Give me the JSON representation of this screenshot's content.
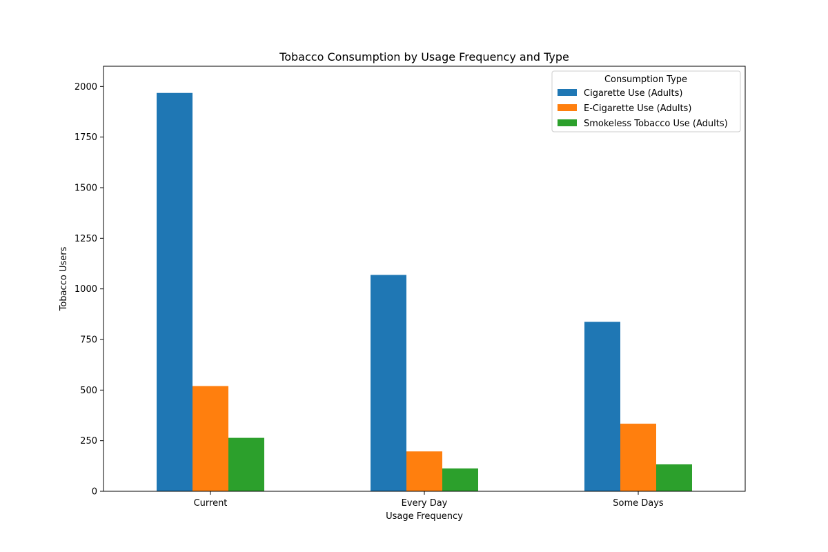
{
  "chart_data": {
    "type": "bar",
    "title": "Tobacco Consumption by Usage Frequency and Type",
    "xlabel": "Usage Frequency",
    "ylabel": "Tobacco Users",
    "categories": [
      "Current",
      "Every Day",
      "Some Days"
    ],
    "ylim": [
      0,
      2100
    ],
    "yticks": [
      0,
      250,
      500,
      750,
      1000,
      1250,
      1500,
      1750,
      2000
    ],
    "grid": false,
    "legend": {
      "title": "Consumption Type",
      "placement": "top-right"
    },
    "series": [
      {
        "name": "Cigarette Use (Adults)",
        "color": "#1f77b4",
        "values": [
          1968,
          1069,
          837
        ]
      },
      {
        "name": "E-Cigarette Use (Adults)",
        "color": "#ff7f0e",
        "values": [
          520,
          197,
          334
        ]
      },
      {
        "name": "Smokeless Tobacco Use (Adults)",
        "color": "#2ca02c",
        "values": [
          264,
          113,
          133
        ]
      }
    ]
  }
}
